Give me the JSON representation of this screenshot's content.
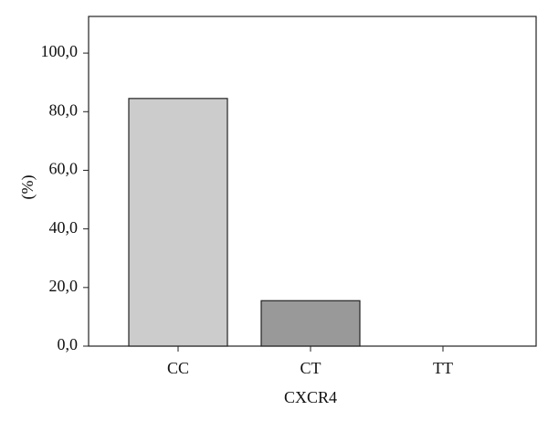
{
  "chart_data": {
    "type": "bar",
    "x_label": "CXCR4",
    "y_label": "(%)",
    "categories": [
      "CC",
      "CT",
      "TT"
    ],
    "values": [
      84.5,
      15.5,
      0
    ],
    "colors": [
      "#cccccc",
      "#999999",
      "#777777"
    ],
    "ylim": [
      0,
      112.5
    ],
    "yticks": [
      {
        "value": 0,
        "label": "0,0"
      },
      {
        "value": 20,
        "label": "20,0"
      },
      {
        "value": 40,
        "label": "40,0"
      },
      {
        "value": 60,
        "label": "60,0"
      },
      {
        "value": 80,
        "label": "80,0"
      },
      {
        "value": 100,
        "label": "100,0"
      }
    ],
    "grid": false
  }
}
